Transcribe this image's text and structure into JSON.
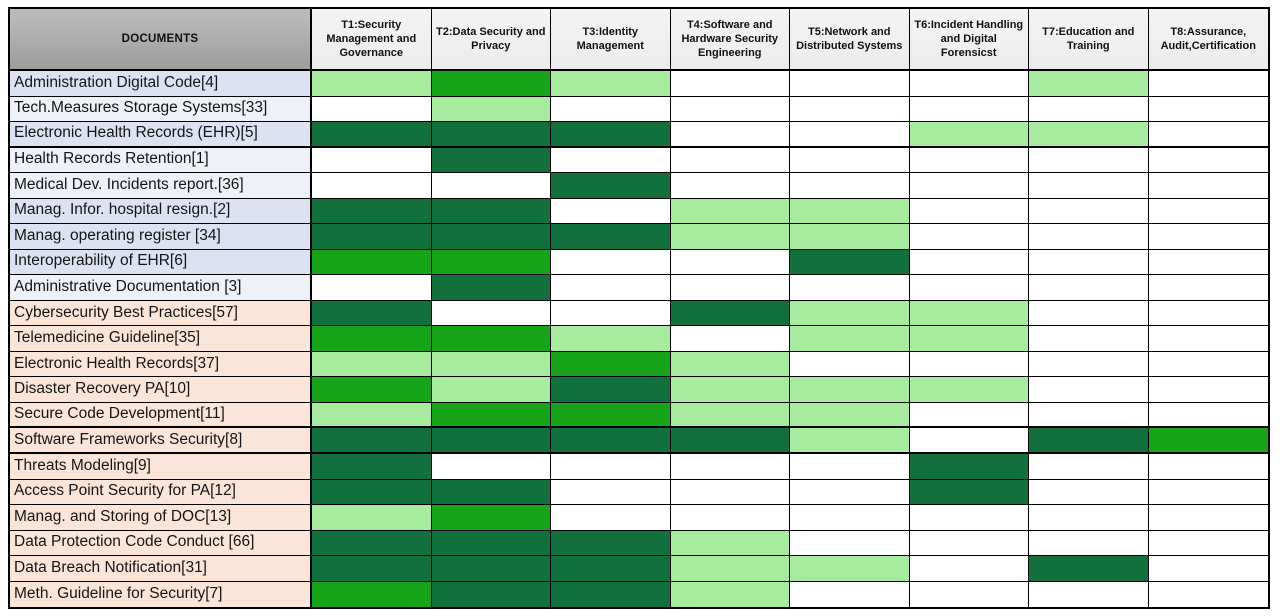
{
  "header": {
    "documents_label": "DOCUMENTS",
    "topics": [
      "T1:Security Management and Governance",
      "T2:Data Security and Privacy",
      "T3:Identity Management",
      "T4:Software and Hardware Security Engineering",
      "T5:Network and Distributed Systems",
      "T6:Incident Handling and Digital Forensicst",
      "T7:Education and Training",
      "T8:Assurance, Audit,Certification"
    ]
  },
  "colors": {
    "none": "#ffffff",
    "light": "#a6eb9e",
    "medium": "#18a418",
    "dark": "#11703b",
    "label_blue": "#dce2f2",
    "label_blue_light": "#eef1f8",
    "label_peach": "#fbe5d8",
    "header_gray": "#acacac",
    "header_light": "#f1f1f1",
    "grid_border": "#000000"
  },
  "chart_data": {
    "type": "heatmap",
    "title": "",
    "xlabel": "",
    "ylabel": "",
    "legend_position": "none",
    "grid": true,
    "levels": {
      "0": "none",
      "1": "light",
      "2": "medium",
      "3": "dark"
    },
    "x_categories": [
      "T1:Security Management and Governance",
      "T2:Data Security and Privacy",
      "T3:Identity Management",
      "T4:Software and Hardware Security Engineering",
      "T5:Network and Distributed Systems",
      "T6:Incident Handling and Digital Forensicst",
      "T7:Education and Training",
      "T8:Assurance, Audit,Certification"
    ],
    "y_categories": [
      "Administration Digital Code[4]",
      "Tech.Measures Storage Systems[33]",
      "Electronic Health Records (EHR)[5]",
      "Health Records Retention[1]",
      "Medical Dev. Incidents report.[36]",
      "Manag. Infor. hospital resign.[2]",
      "Manag. operating register [34]",
      "Interoperability of EHR[6]",
      "Administrative Documentation [3]",
      "Cybersecurity Best Practices[57]",
      "Telemedicine Guideline[35]",
      "Electronic Health Records[37]",
      "Disaster Recovery PA[10]",
      "Secure Code Development[11]",
      "Software Frameworks Security[8]",
      "Threats Modeling[9]",
      "Access Point Security for PA[12]",
      "Manag. and Storing of DOC[13]",
      "Data Protection Code Conduct [66]",
      "Data Breach Notification[31]",
      "Meth. Guideline for Security[7]"
    ],
    "values": [
      [
        1,
        2,
        1,
        0,
        0,
        0,
        1,
        0
      ],
      [
        0,
        1,
        0,
        0,
        0,
        0,
        0,
        0
      ],
      [
        3,
        3,
        3,
        0,
        0,
        1,
        1,
        0
      ],
      [
        0,
        3,
        0,
        0,
        0,
        0,
        0,
        0
      ],
      [
        0,
        0,
        3,
        0,
        0,
        0,
        0,
        0
      ],
      [
        3,
        3,
        0,
        1,
        1,
        0,
        0,
        0
      ],
      [
        3,
        3,
        3,
        1,
        1,
        0,
        0,
        0
      ],
      [
        2,
        2,
        0,
        0,
        3,
        0,
        0,
        0
      ],
      [
        0,
        3,
        0,
        0,
        0,
        0,
        0,
        0
      ],
      [
        3,
        0,
        0,
        3,
        1,
        1,
        0,
        0
      ],
      [
        2,
        2,
        1,
        0,
        1,
        1,
        0,
        0
      ],
      [
        1,
        1,
        2,
        1,
        0,
        0,
        0,
        0
      ],
      [
        2,
        1,
        3,
        1,
        1,
        1,
        0,
        0
      ],
      [
        1,
        2,
        2,
        1,
        1,
        0,
        0,
        0
      ],
      [
        3,
        3,
        3,
        3,
        1,
        0,
        3,
        2
      ],
      [
        3,
        0,
        0,
        0,
        0,
        3,
        0,
        0
      ],
      [
        3,
        3,
        0,
        0,
        0,
        3,
        0,
        0
      ],
      [
        1,
        2,
        0,
        0,
        0,
        0,
        0,
        0
      ],
      [
        3,
        3,
        3,
        1,
        0,
        0,
        0,
        0
      ],
      [
        3,
        3,
        3,
        1,
        1,
        0,
        3,
        0
      ],
      [
        2,
        3,
        3,
        1,
        0,
        0,
        0,
        0
      ]
    ]
  },
  "rows_meta": {
    "label_backgrounds": [
      "label_blue",
      "label_blue_light",
      "label_blue",
      "label_blue_light",
      "label_blue_light",
      "label_blue",
      "label_blue",
      "label_blue",
      "label_blue_light",
      "label_peach",
      "label_peach",
      "label_peach",
      "label_peach",
      "label_peach",
      "label_peach",
      "label_peach",
      "label_peach",
      "label_peach",
      "label_peach",
      "label_peach",
      "label_peach"
    ],
    "thick_bottom_rows": [
      3,
      14,
      15
    ]
  }
}
